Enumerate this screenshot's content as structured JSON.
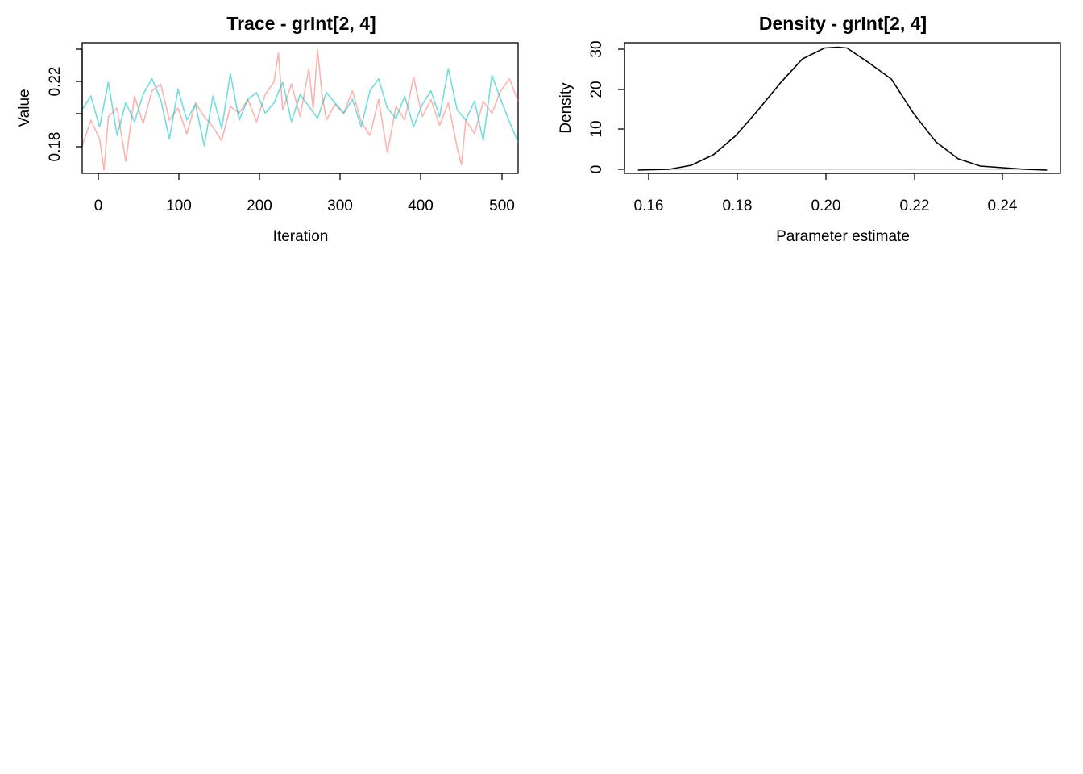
{
  "chart_data": [
    {
      "type": "line",
      "title": "Trace - grInt[2, 4]",
      "xlabel": "Iteration",
      "ylabel": "Value",
      "xlim": [
        0,
        500
      ],
      "ylim": [
        0.166,
        0.242
      ],
      "x_ticks": [
        "0",
        "100",
        "200",
        "300",
        "400",
        "500"
      ],
      "y_ticks": [
        "0.18",
        "0.22"
      ],
      "grid": false,
      "legend": "none",
      "series": [
        {
          "color": "#F8766D",
          "x": [
            0,
            10,
            20,
            25,
            30,
            40,
            50,
            60,
            70,
            80,
            90,
            100,
            110,
            120,
            130,
            140,
            150,
            160,
            170,
            180,
            190,
            200,
            210,
            220,
            225,
            230,
            240,
            250,
            260,
            265,
            270,
            275,
            280,
            290,
            300,
            310,
            320,
            330,
            340,
            350,
            360,
            370,
            380,
            390,
            400,
            410,
            420,
            430,
            435,
            440,
            450,
            460,
            470,
            480,
            490,
            500
          ],
          "y": [
            0.182,
            0.197,
            0.186,
            0.168,
            0.199,
            0.204,
            0.173,
            0.211,
            0.195,
            0.214,
            0.218,
            0.197,
            0.204,
            0.189,
            0.207,
            0.199,
            0.193,
            0.185,
            0.205,
            0.201,
            0.209,
            0.196,
            0.212,
            0.219,
            0.236,
            0.203,
            0.218,
            0.199,
            0.227,
            0.203,
            0.238,
            0.212,
            0.197,
            0.206,
            0.201,
            0.214,
            0.196,
            0.188,
            0.209,
            0.178,
            0.205,
            0.197,
            0.222,
            0.199,
            0.209,
            0.194,
            0.207,
            0.181,
            0.171,
            0.197,
            0.189,
            0.208,
            0.201,
            0.214,
            0.221,
            0.208
          ]
        },
        {
          "color": "#00BFC4",
          "x": [
            0,
            10,
            20,
            30,
            40,
            50,
            60,
            70,
            80,
            90,
            100,
            110,
            120,
            130,
            140,
            150,
            160,
            170,
            180,
            190,
            200,
            210,
            220,
            230,
            240,
            250,
            260,
            270,
            280,
            290,
            300,
            310,
            320,
            330,
            340,
            350,
            360,
            370,
            380,
            390,
            400,
            410,
            420,
            430,
            440,
            450,
            460,
            470,
            480,
            490,
            500
          ],
          "y": [
            0.203,
            0.211,
            0.193,
            0.219,
            0.188,
            0.207,
            0.196,
            0.212,
            0.221,
            0.209,
            0.186,
            0.215,
            0.197,
            0.206,
            0.182,
            0.211,
            0.192,
            0.224,
            0.197,
            0.209,
            0.213,
            0.201,
            0.207,
            0.219,
            0.196,
            0.212,
            0.205,
            0.198,
            0.213,
            0.207,
            0.201,
            0.209,
            0.193,
            0.214,
            0.221,
            0.204,
            0.198,
            0.211,
            0.193,
            0.206,
            0.214,
            0.199,
            0.227,
            0.203,
            0.197,
            0.208,
            0.185,
            0.223,
            0.209,
            0.196,
            0.184
          ]
        }
      ]
    },
    {
      "type": "line",
      "title": "Density - grInt[2, 4]",
      "xlabel": "Parameter estimate",
      "ylabel": "Density",
      "xlim": [
        0.155,
        0.253
      ],
      "ylim": [
        -0.8,
        31.5
      ],
      "x_ticks": [
        "0.16",
        "0.18",
        "0.20",
        "0.22",
        "0.24"
      ],
      "y_ticks": [
        "0",
        "10",
        "20",
        "30"
      ],
      "grid": false,
      "legend": "none",
      "series": [
        {
          "color": "#000000",
          "x": [
            0.158,
            0.165,
            0.17,
            0.175,
            0.18,
            0.185,
            0.19,
            0.195,
            0.2,
            0.203,
            0.205,
            0.21,
            0.215,
            0.22,
            0.225,
            0.23,
            0.235,
            0.24,
            0.245,
            0.25
          ],
          "y": [
            0,
            0.2,
            1.2,
            3.8,
            8.5,
            14.8,
            21.5,
            27.5,
            30.2,
            30.4,
            30.2,
            26.5,
            22.5,
            14,
            7,
            2.8,
            1.0,
            0.6,
            0.2,
            0
          ]
        }
      ]
    }
  ]
}
